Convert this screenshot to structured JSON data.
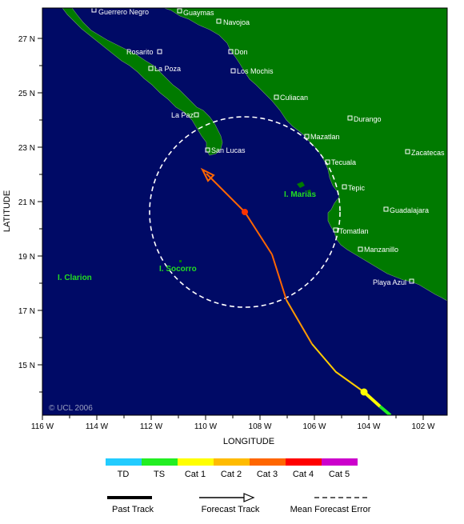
{
  "map": {
    "x_axis_label": "LONGITUDE",
    "y_axis_label": "LATITUDE",
    "lon_ticks": [
      "116 W",
      "114 W",
      "112 W",
      "110 W",
      "108 W",
      "106 W",
      "104 W",
      "102 W"
    ],
    "lat_ticks": [
      "27 N",
      "25 N",
      "23 N",
      "21 N",
      "19 N",
      "17 N",
      "15 N"
    ],
    "copyright": "© UCL 2006",
    "ocean_color": "#000a66",
    "land_color": "#007a00",
    "forecast_error_circle_color": "#ffffff"
  },
  "places": [
    {
      "name": "Guerrero Negro"
    },
    {
      "name": "Guaymas"
    },
    {
      "name": "Navojoa"
    },
    {
      "name": "Rosarito"
    },
    {
      "name": "Don"
    },
    {
      "name": "La Poza"
    },
    {
      "name": "Los Mochis"
    },
    {
      "name": "Culiacan"
    },
    {
      "name": "La Paz"
    },
    {
      "name": "Durango"
    },
    {
      "name": "Mazatlan"
    },
    {
      "name": "San Lucas"
    },
    {
      "name": "Zacatecas"
    },
    {
      "name": "Tecuala"
    },
    {
      "name": "Tepic"
    },
    {
      "name": "Guadalajara"
    },
    {
      "name": "Tomatlan"
    },
    {
      "name": "Manzanillo"
    },
    {
      "name": "Playa Azul"
    }
  ],
  "islands": [
    {
      "name": "I. Marias"
    },
    {
      "name": "I. Socorro"
    },
    {
      "name": "I. Clarion"
    }
  ],
  "legend": {
    "scale_labels": [
      "TD",
      "TS",
      "Cat 1",
      "Cat 2",
      "Cat 3",
      "Cat 4",
      "Cat 5"
    ],
    "scale_colors": [
      "#22ccff",
      "#22ee22",
      "#ffff00",
      "#ffbb00",
      "#ff6600",
      "#ff0000",
      "#cc00cc"
    ],
    "past_track_label": "Past Track",
    "forecast_track_label": "Forecast Track",
    "mean_error_label": "Mean Forecast Error"
  }
}
